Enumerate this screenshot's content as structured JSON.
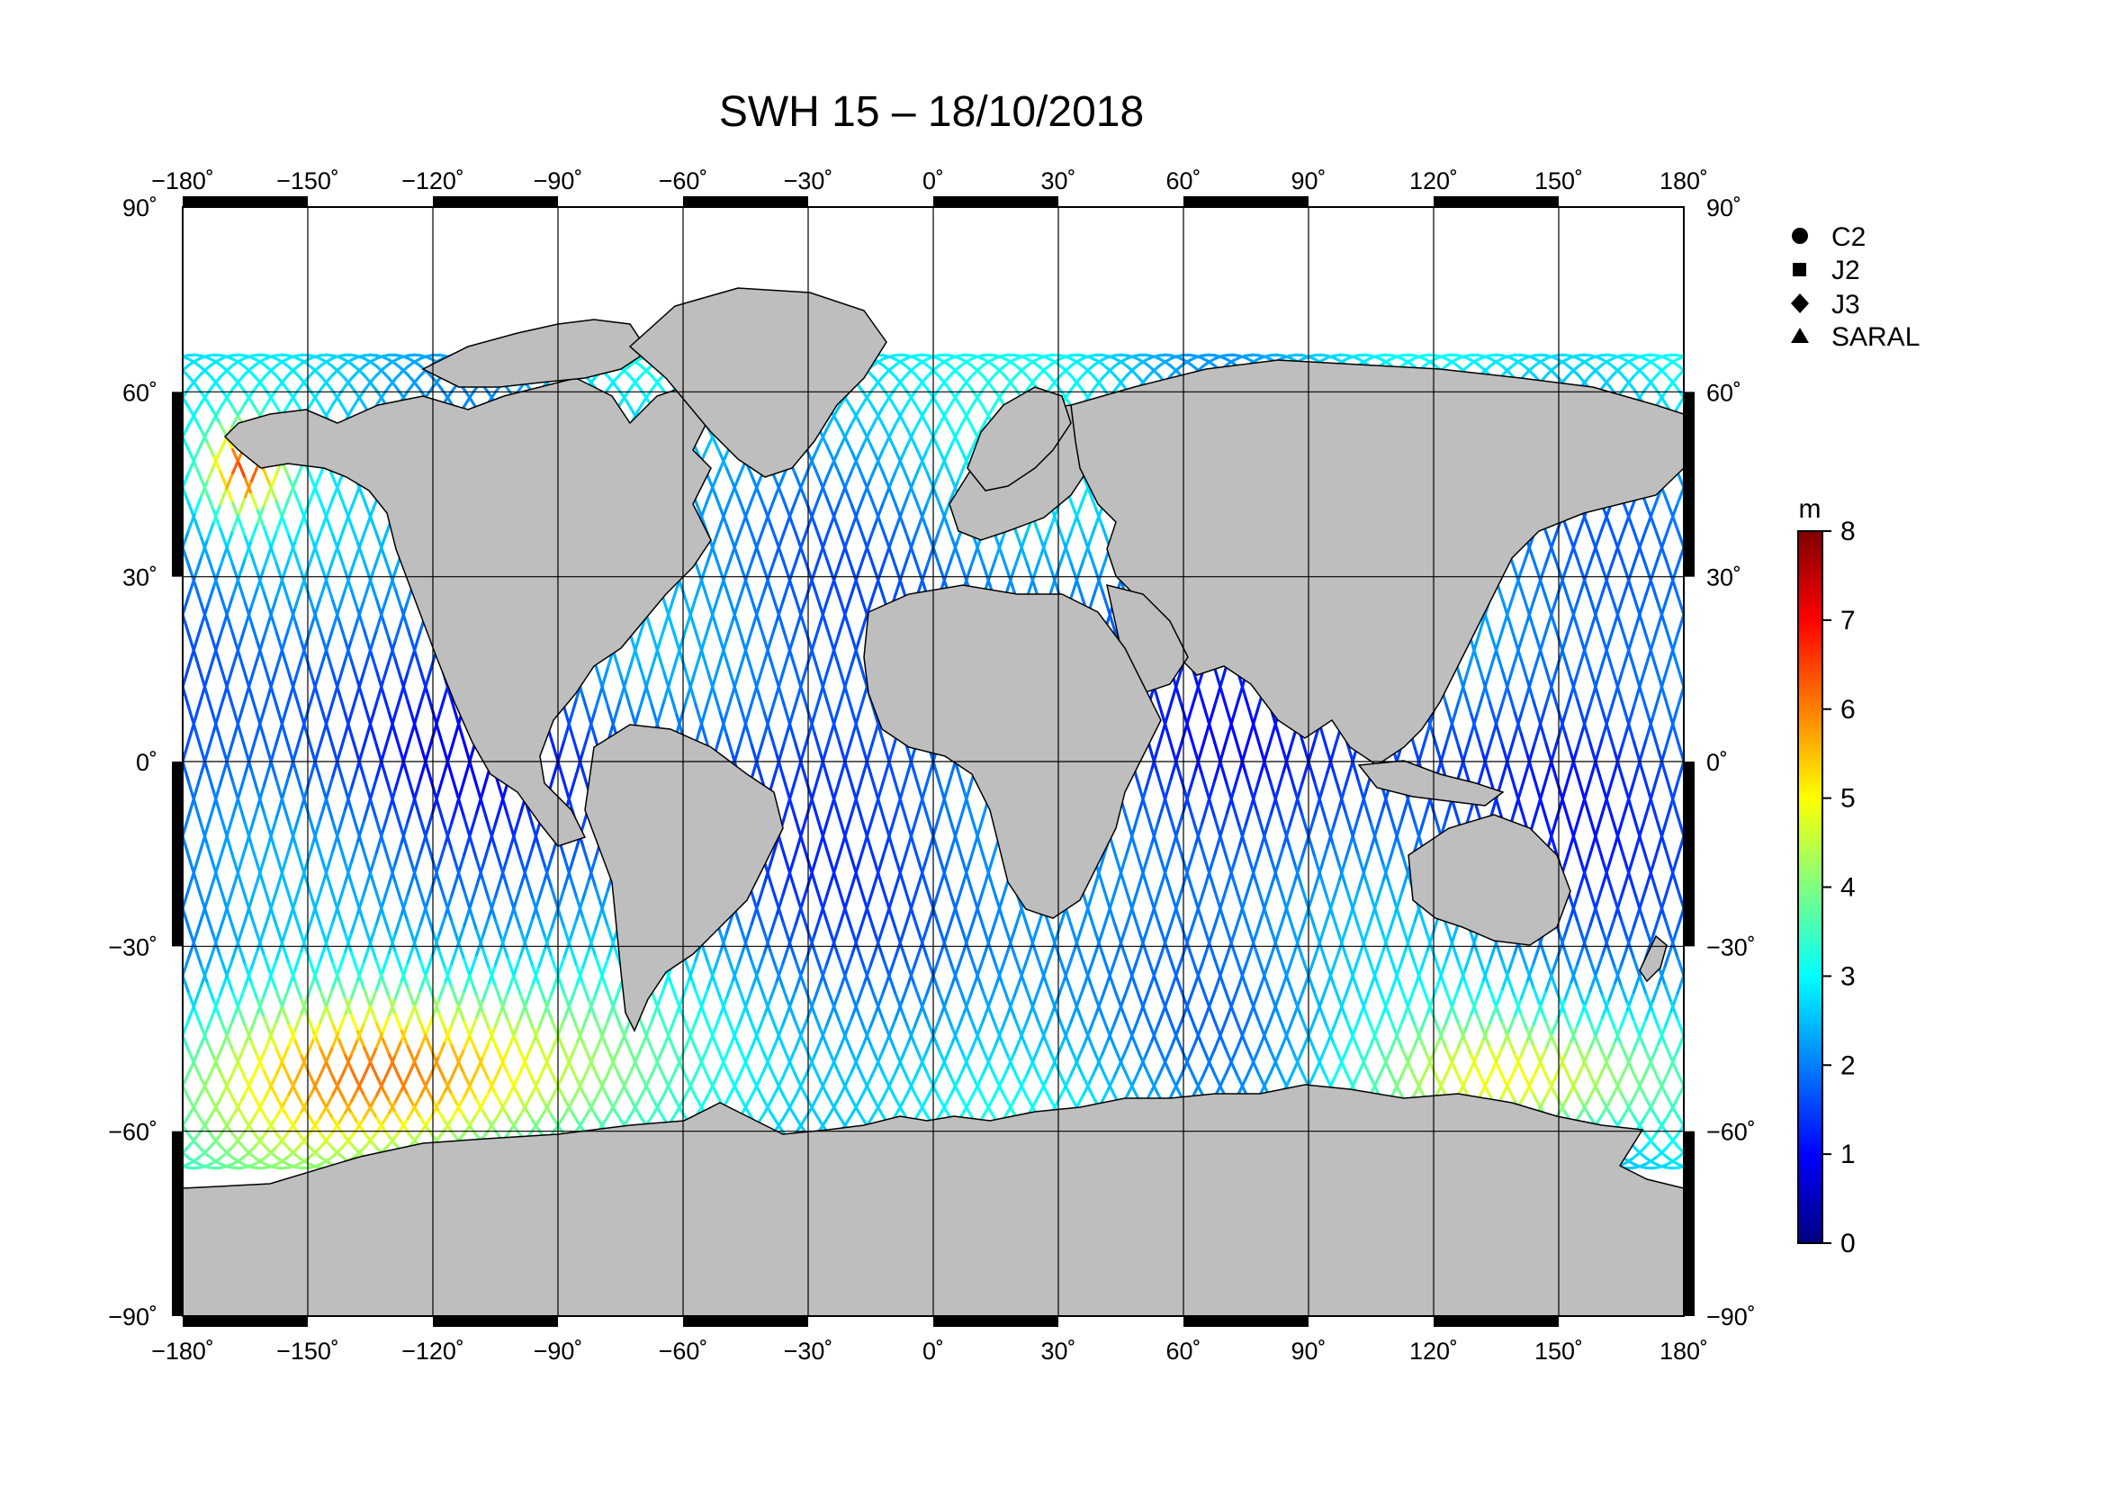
{
  "title": "SWH 15 – 18/10/2018",
  "lon_ticks": [
    "−180˚",
    "−150˚",
    "−120˚",
    "−90˚",
    "−60˚",
    "−30˚",
    "0˚",
    "30˚",
    "60˚",
    "90˚",
    "120˚",
    "150˚",
    "180˚"
  ],
  "lat_ticks_left": [
    "90˚",
    "60˚",
    "30˚",
    "0˚",
    "−30˚",
    "−60˚",
    "−90˚"
  ],
  "lat_ticks_right": [
    "90˚",
    "60˚",
    "30˚",
    "0˚",
    "−30˚",
    "−60˚",
    "−90˚"
  ],
  "legend": {
    "items": [
      {
        "symbol": "circle",
        "label": "C2"
      },
      {
        "symbol": "square",
        "label": "J2"
      },
      {
        "symbol": "diamond",
        "label": "J3"
      },
      {
        "symbol": "triangle",
        "label": "SARAL"
      }
    ]
  },
  "colorbar": {
    "unit": "m",
    "min": 0,
    "max": 8,
    "ticks": [
      "0",
      "1",
      "2",
      "3",
      "4",
      "5",
      "6",
      "7",
      "8"
    ],
    "colormap": "jet"
  },
  "colors": {
    "land": "#bebebe",
    "ocean": "#ffffff",
    "frame": "#000000"
  },
  "chart_data": {
    "type": "map",
    "projection": "equirectangular",
    "lon_range": [
      -180,
      180
    ],
    "lat_range": [
      -90,
      90
    ],
    "grid_lons": [
      -180,
      -150,
      -120,
      -90,
      -60,
      -30,
      0,
      30,
      60,
      90,
      120,
      150,
      180
    ],
    "grid_lats": [
      -90,
      -60,
      -30,
      0,
      30,
      60,
      90
    ],
    "variable": "significant wave height",
    "unit": "m",
    "value_range": [
      0,
      8
    ],
    "track_lat_coverage": [
      -66,
      66
    ],
    "high_swh_regions": [
      {
        "lon_range": [
          -180,
          -75
        ],
        "lat_range": [
          -65,
          -35
        ],
        "approx_value": 6.5
      },
      {
        "lon_range": [
          -175,
          -155
        ],
        "lat_range": [
          40,
          55
        ],
        "approx_value": 6.0
      },
      {
        "lon_range": [
          100,
          180
        ],
        "lat_range": [
          -62,
          -40
        ],
        "approx_value": 5.0
      }
    ]
  }
}
